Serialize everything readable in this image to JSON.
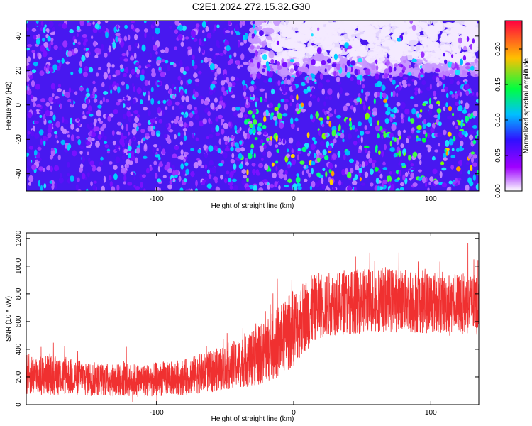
{
  "title": "C2E1.2024.272.15.32.G30",
  "colors": {
    "snr_line": "#f03030",
    "axes": "#000000"
  },
  "chart_data": [
    {
      "type": "heatmap",
      "xlabel": "Height of straight line (km)",
      "ylabel": "Frequency (Hz)",
      "xlim": [
        -195,
        135
      ],
      "ylim": [
        -50,
        49
      ],
      "xticks": [
        -100,
        0,
        100
      ],
      "yticks": [
        -40,
        -20,
        0,
        20,
        40
      ],
      "colorbar": {
        "label": "Normalized spectral amplitude",
        "range": [
          0,
          0.24
        ],
        "ticks": [
          0.0,
          0.05,
          0.1,
          0.15,
          0.2
        ],
        "tick_labels": [
          "0.00",
          "0.05",
          "0.10",
          "0.15",
          "0.20"
        ],
        "colormap": [
          "#ffffff",
          "#a000ff",
          "#3010ff",
          "#00c0ff",
          "#00ff40",
          "#ffc000",
          "#ff0040"
        ]
      },
      "regions": [
        {
          "x": [
            -195,
            130
          ],
          "y": [
            -50,
            49
          ],
          "level": 0.04
        },
        {
          "x": [
            -40,
            135
          ],
          "y": [
            -45,
            5
          ],
          "level": 0.09
        },
        {
          "x": [
            -30,
            135
          ],
          "y": [
            18,
            49
          ],
          "level": 0.0
        }
      ]
    },
    {
      "type": "line",
      "xlabel": "Height of straight line (km)",
      "ylabel": "SNR (10 * v/v)",
      "xlim": [
        -195,
        135
      ],
      "ylim": [
        0,
        1240
      ],
      "xticks": [
        -100,
        0,
        100
      ],
      "yticks": [
        0,
        200,
        400,
        600,
        800,
        1000,
        1200
      ],
      "envelope": {
        "x": [
          -195,
          -170,
          -140,
          -110,
          -80,
          -60,
          -40,
          -25,
          -10,
          0,
          10,
          20,
          40,
          60,
          80,
          100,
          120,
          135
        ],
        "mean": [
          220,
          210,
          180,
          175,
          200,
          240,
          300,
          360,
          450,
          560,
          660,
          720,
          740,
          760,
          750,
          740,
          730,
          720
        ],
        "amp": [
          150,
          140,
          120,
          120,
          130,
          150,
          180,
          220,
          260,
          280,
          260,
          240,
          230,
          240,
          230,
          230,
          220,
          220
        ]
      }
    }
  ]
}
